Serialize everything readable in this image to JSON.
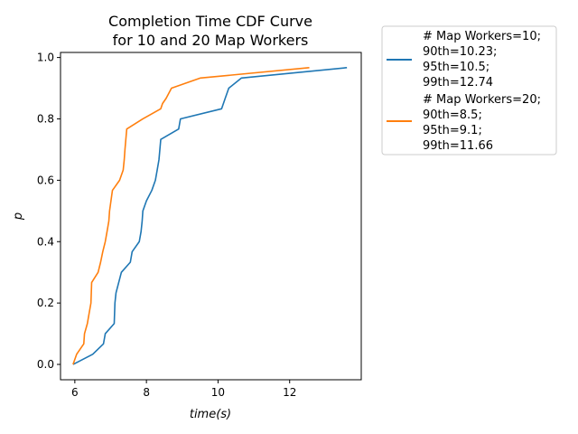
{
  "chart_data": {
    "type": "line",
    "title": [
      "Completion Time CDF Curve",
      "for 10 and 20 Map Workers"
    ],
    "xlabel": "time(s)",
    "ylabel": "p",
    "xlim": [
      5.6,
      14.0
    ],
    "ylim": [
      -0.05,
      1.0165
    ],
    "xticks": [
      6,
      8,
      10,
      12
    ],
    "yticks": [
      0.0,
      0.2,
      0.4,
      0.6,
      0.8,
      1.0
    ],
    "xtick_labels": [
      "6",
      "8",
      "10",
      "12"
    ],
    "ytick_labels": [
      "0.0",
      "0.2",
      "0.4",
      "0.6",
      "0.8",
      "1.0"
    ],
    "grid": false,
    "legend_placement": "outside-right",
    "series": [
      {
        "name": "10 map workers",
        "color": "#1f77b4",
        "legend_lines": [
          "# Map Workers=10;",
          "90th=10.23;",
          "95th=10.5;",
          "99th=12.74"
        ],
        "x": [
          5.95,
          6.5,
          6.8,
          6.85,
          7.1,
          7.12,
          7.15,
          7.3,
          7.55,
          7.6,
          7.8,
          7.85,
          7.88,
          7.9,
          8.0,
          8.15,
          8.25,
          8.3,
          8.35,
          8.4,
          8.9,
          8.95,
          10.1,
          10.2,
          10.3,
          10.65,
          13.6
        ],
        "y": [
          0.0,
          0.033,
          0.067,
          0.1,
          0.133,
          0.2,
          0.233,
          0.3,
          0.333,
          0.367,
          0.4,
          0.433,
          0.467,
          0.5,
          0.533,
          0.567,
          0.6,
          0.633,
          0.667,
          0.733,
          0.767,
          0.8,
          0.833,
          0.867,
          0.9,
          0.933,
          0.967
        ]
      },
      {
        "name": "20 map workers",
        "color": "#ff7f0e",
        "legend_lines": [
          "# Map Workers=20;",
          "90th=8.5;",
          "95th=9.1;",
          "99th=11.66"
        ],
        "x": [
          5.95,
          6.05,
          6.25,
          6.27,
          6.35,
          6.4,
          6.45,
          6.47,
          6.65,
          6.72,
          6.78,
          6.85,
          6.9,
          6.95,
          6.97,
          7.05,
          7.25,
          7.35,
          7.38,
          7.4,
          7.45,
          7.9,
          8.4,
          8.45,
          8.55,
          8.7,
          9.5,
          12.55
        ],
        "y": [
          0.0,
          0.033,
          0.067,
          0.1,
          0.133,
          0.167,
          0.2,
          0.267,
          0.3,
          0.333,
          0.367,
          0.4,
          0.433,
          0.467,
          0.5,
          0.567,
          0.6,
          0.633,
          0.667,
          0.7,
          0.767,
          0.8,
          0.833,
          0.85,
          0.867,
          0.9,
          0.933,
          0.967
        ]
      }
    ]
  }
}
